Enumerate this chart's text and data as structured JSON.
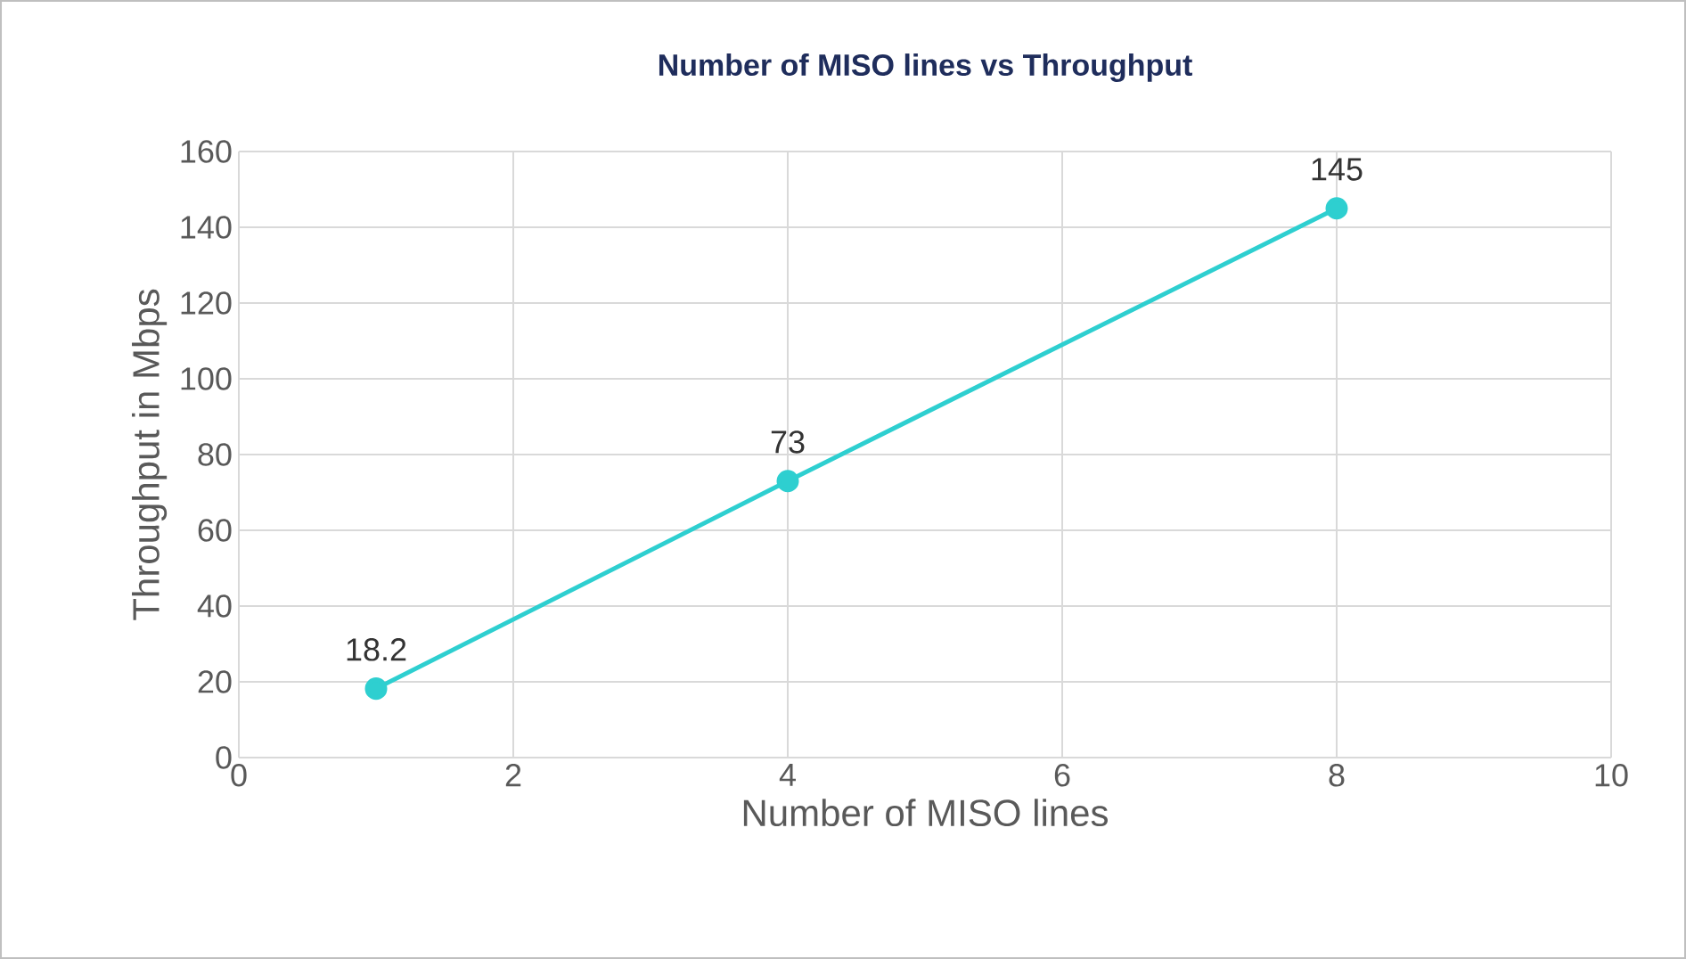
{
  "chart_data": {
    "type": "line",
    "title": "Number of MISO lines vs Throughput",
    "xlabel": "Number of MISO lines",
    "ylabel": "Throughput in Mbps",
    "x": [
      1,
      4,
      8
    ],
    "values": [
      18.2,
      73,
      145
    ],
    "color": "#2ecfd0",
    "xlim": [
      0,
      10
    ],
    "xticks": [
      0,
      2,
      4,
      6,
      8,
      10
    ],
    "ylim": [
      0,
      160
    ],
    "yticks": [
      0,
      20,
      40,
      60,
      80,
      100,
      120,
      140,
      160
    ],
    "grid": true,
    "marker": "circle",
    "line_style": "solid",
    "data_labels": true
  }
}
